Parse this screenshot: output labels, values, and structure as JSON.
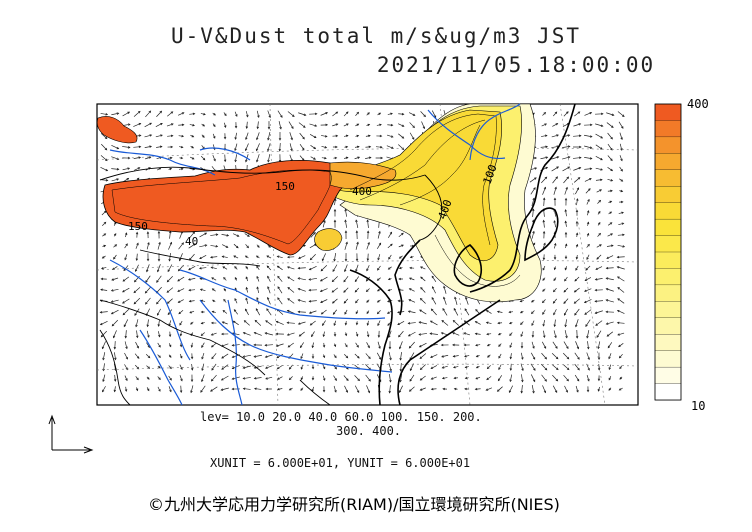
{
  "header": {
    "title_line1": "U-V&Dust total m/s&ug/m3 JST",
    "title_line2": "2021/11/05.18:00:00"
  },
  "colorbar": {
    "max_label": "400",
    "min_label": "10",
    "colors": [
      "#ef5a21",
      "#f27a28",
      "#f4932c",
      "#f6a92f",
      "#f7bc32",
      "#f8cc34",
      "#f9da36",
      "#fae33a",
      "#fbe84a",
      "#fbec5c",
      "#fcf06e",
      "#fcf282",
      "#fdf596",
      "#fdf7aa",
      "#fef9bf",
      "#fefbd2",
      "#fffde6",
      "#ffffff"
    ]
  },
  "chart_data": {
    "type": "heatmap",
    "title": "U-V&Dust total m/s&ug/m3 JST",
    "subtitle": "2021/11/05.18:00:00",
    "colorbar_range": [
      10,
      400
    ],
    "contour_levels": [
      10.0,
      20.0,
      40.0,
      60.0,
      100.0,
      150.0,
      200.0,
      300.0,
      400.0
    ],
    "contour_labels_on_map": [
      "40",
      "100",
      "150",
      "150",
      "400",
      "400"
    ],
    "colors": {
      "high": "#ef5a21",
      "mid": "#f9da36",
      "low": "#fefbd2"
    }
  },
  "legend_text": {
    "levels_line1": "lev= 10.0 20.0 40.0 60.0 100. 150. 200.",
    "levels_line2": "300. 400."
  },
  "units_text": "XUNIT = 6.000E+01, YUNIT = 6.000E+01",
  "credit": "©九州大学応用力学研究所(RIAM)/国立環境研究所(NIES)"
}
